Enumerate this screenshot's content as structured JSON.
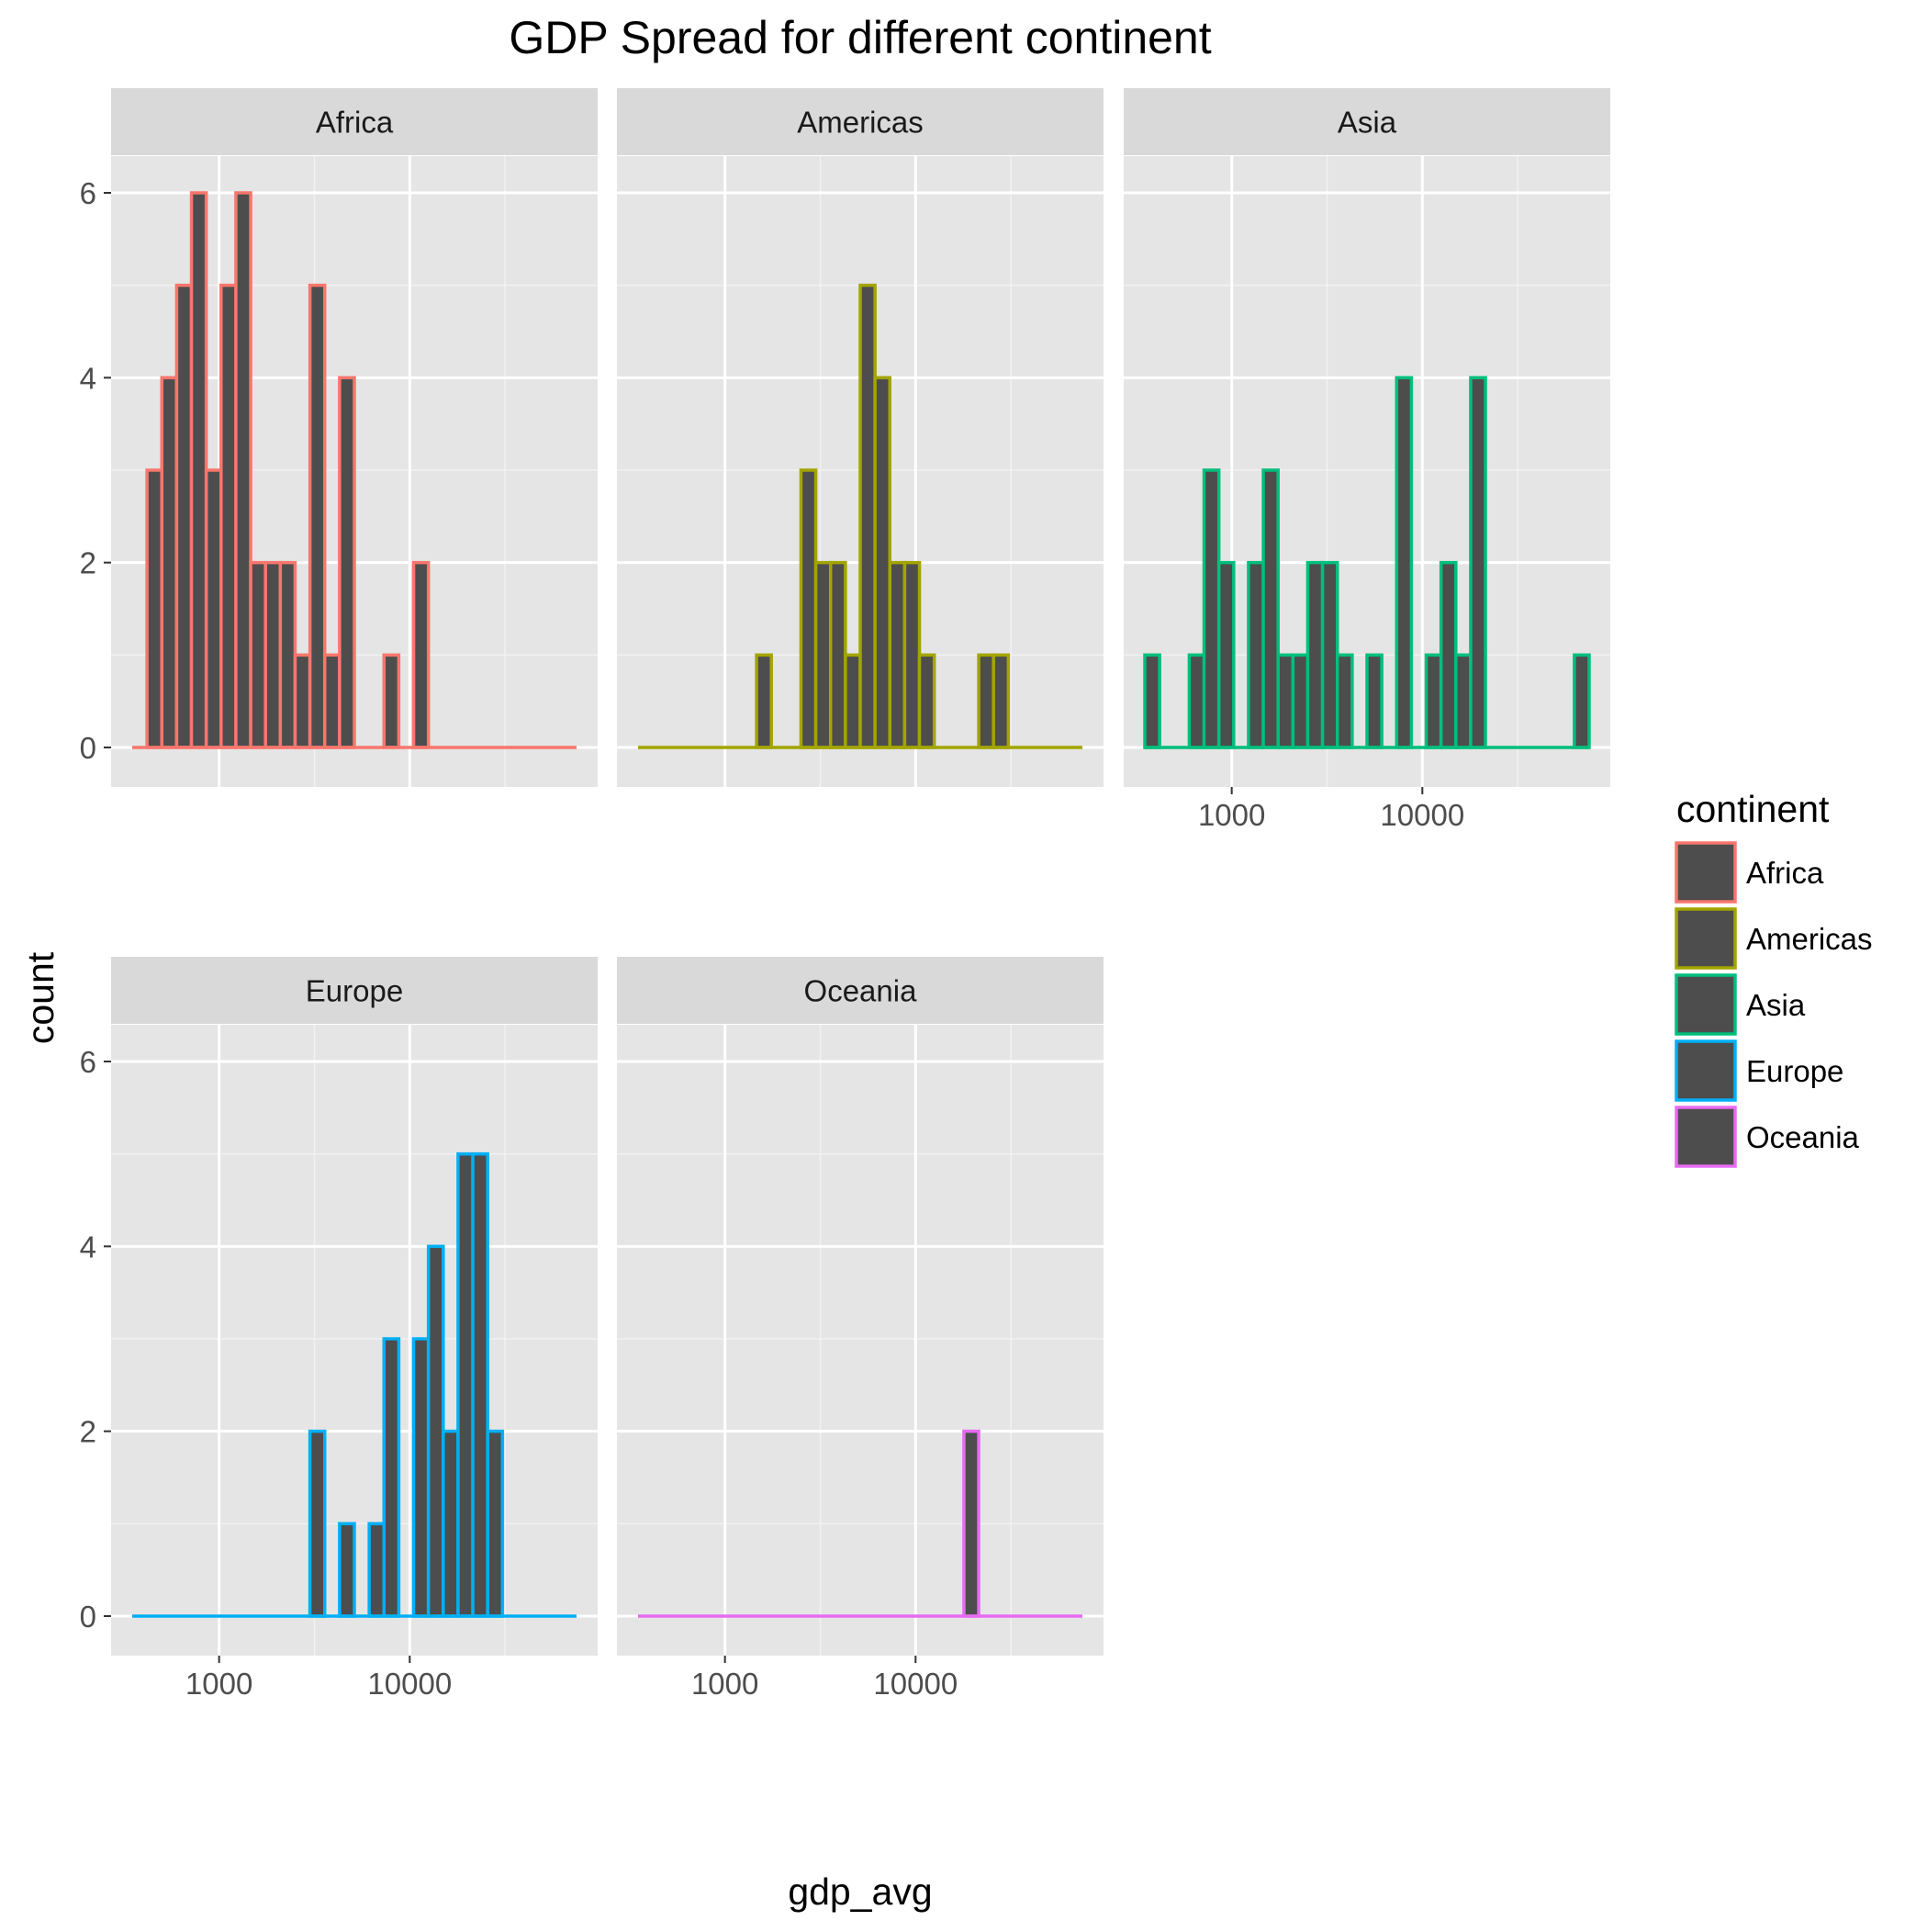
{
  "chart_data": {
    "type": "histogram",
    "title": "GDP Spread for different continent",
    "xlabel": "gdp_avg",
    "ylabel": "count",
    "x_scale": "log10",
    "x_range": [
      350,
      75000
    ],
    "x_major_ticks": [
      1000,
      10000
    ],
    "x_tick_labels": [
      "1000",
      "10000"
    ],
    "y_range": [
      0,
      6
    ],
    "y_major_ticks": [
      0,
      2,
      4,
      6
    ],
    "y_tick_labels": [
      "0",
      "2",
      "4",
      "6"
    ],
    "bins": 30,
    "bar_fill": "#4d4d4d",
    "panel_background": "#e5e5e5",
    "strip_background": "#d9d9d9",
    "grid": true,
    "facet_layout": {
      "rows": 2,
      "cols": 3,
      "order": "row-major"
    },
    "legend": {
      "title": "continent",
      "position": "right",
      "entries": [
        {
          "label": "Africa",
          "color": "#F8766D"
        },
        {
          "label": "Americas",
          "color": "#A3A500"
        },
        {
          "label": "Asia",
          "color": "#00BF7D"
        },
        {
          "label": "Europe",
          "color": "#00B0F6"
        },
        {
          "label": "Oceania",
          "color": "#E76BF3"
        }
      ]
    },
    "panels": [
      {
        "name": "Africa",
        "color": "#F8766D",
        "bar_counts": [
          0,
          3,
          4,
          5,
          6,
          3,
          5,
          6,
          2,
          2,
          2,
          1,
          5,
          1,
          4,
          0,
          0,
          1,
          0,
          2,
          0,
          0,
          0,
          0,
          0,
          0,
          0,
          0,
          0,
          0
        ]
      },
      {
        "name": "Americas",
        "color": "#A3A500",
        "bar_counts": [
          0,
          0,
          0,
          0,
          0,
          0,
          0,
          0,
          1,
          0,
          0,
          3,
          2,
          2,
          1,
          5,
          4,
          2,
          2,
          1,
          0,
          0,
          0,
          1,
          1,
          0,
          0,
          0,
          0,
          0
        ]
      },
      {
        "name": "Asia",
        "color": "#00BF7D",
        "bar_counts": [
          1,
          0,
          0,
          1,
          3,
          2,
          0,
          2,
          3,
          1,
          1,
          2,
          2,
          1,
          0,
          1,
          0,
          4,
          0,
          1,
          2,
          1,
          4,
          0,
          0,
          0,
          0,
          0,
          0,
          1
        ]
      },
      {
        "name": "Europe",
        "color": "#00B0F6",
        "bar_counts": [
          0,
          0,
          0,
          0,
          0,
          0,
          0,
          0,
          0,
          0,
          0,
          0,
          2,
          0,
          1,
          0,
          1,
          3,
          0,
          3,
          4,
          2,
          5,
          5,
          2,
          0,
          0,
          0,
          0,
          0
        ]
      },
      {
        "name": "Oceania",
        "color": "#E76BF3",
        "bar_counts": [
          0,
          0,
          0,
          0,
          0,
          0,
          0,
          0,
          0,
          0,
          0,
          0,
          0,
          0,
          0,
          0,
          0,
          0,
          0,
          0,
          0,
          0,
          2,
          0,
          0,
          0,
          0,
          0,
          0,
          0
        ]
      }
    ]
  }
}
